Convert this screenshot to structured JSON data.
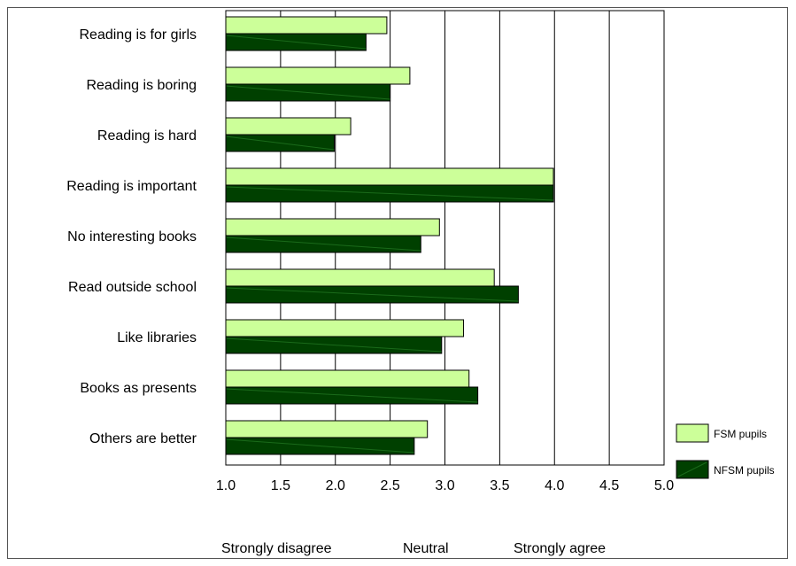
{
  "chart_data": {
    "type": "bar",
    "orientation": "horizontal",
    "categories": [
      "Reading is for girls",
      "Reading is boring",
      "Reading is hard",
      "Reading is important",
      "No interesting books",
      "Read outside school",
      "Like libraries",
      "Books as presents",
      "Others are better"
    ],
    "series": [
      {
        "name": "FSM pupils",
        "color": "#ccff99",
        "values": [
          2.47,
          2.68,
          2.14,
          3.99,
          2.95,
          3.45,
          3.17,
          3.22,
          2.84
        ]
      },
      {
        "name": "NFSM pupils",
        "color": "#004000",
        "values": [
          2.28,
          2.5,
          1.99,
          3.99,
          2.78,
          3.67,
          2.97,
          3.3,
          2.72
        ]
      }
    ],
    "xlim": [
      1.0,
      5.0
    ],
    "xticks": [
      "1.0",
      "1.5",
      "2.0",
      "2.5",
      "3.0",
      "3.5",
      "4.0",
      "4.5",
      "5.0"
    ],
    "grid": "vertical",
    "legend_position": "right",
    "scale_labels": [
      "Strongly disagree",
      "Neutral",
      "Strongly agree"
    ]
  }
}
